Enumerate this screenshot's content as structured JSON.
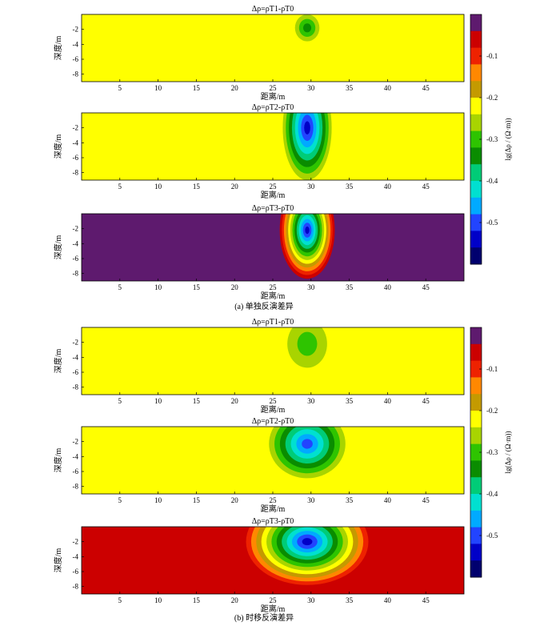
{
  "figure": {
    "panel_a_caption": "(a) 单独反演差异",
    "panel_b_caption": "(b) 时移反演差异"
  },
  "colors": {
    "colorbar_top_to_bottom": [
      "#5e1a6e",
      "#cc0000",
      "#ee2200",
      "#ff8800",
      "#c49a00",
      "#ffff00",
      "#a8d400",
      "#2ec400",
      "#0a8c00",
      "#00cc77",
      "#00e0d0",
      "#00aaff",
      "#2244ff",
      "#0000c8",
      "#00006e"
    ]
  },
  "chart_data": [
    {
      "type": "heatmap",
      "group": "a",
      "title": "Δρ=ρT1-ρT0",
      "xlabel": "距离/m",
      "ylabel": "深度/m",
      "xticks": [
        "5",
        "10",
        "15",
        "20",
        "25",
        "30",
        "35",
        "40",
        "45"
      ],
      "yticks": [
        "-2",
        "-4",
        "-6",
        "-8"
      ],
      "xlim": [
        0,
        50
      ],
      "ylim": [
        -9,
        0
      ],
      "zlim": [
        -0.6,
        0
      ],
      "background_level": 0.37,
      "features": [
        {
          "x": 29.5,
          "y": -1.8,
          "rx": 1.6,
          "ry": 1.8,
          "min_level": 0.58
        }
      ]
    },
    {
      "type": "heatmap",
      "group": "a",
      "title": "Δρ=ρT2-ρT0",
      "xlabel": "距离/m",
      "ylabel": "深度/m",
      "xticks": [
        "5",
        "10",
        "15",
        "20",
        "25",
        "30",
        "35",
        "40",
        "45"
      ],
      "yticks": [
        "-2",
        "-4",
        "-6",
        "-8"
      ],
      "xlim": [
        0,
        50
      ],
      "ylim": [
        -9,
        0
      ],
      "zlim": [
        -0.6,
        0
      ],
      "background_level": 0.37,
      "features": [
        {
          "x": 29.5,
          "y": -2.0,
          "rx": 3.2,
          "ry": 7.0,
          "min_level": 0.93
        }
      ]
    },
    {
      "type": "heatmap",
      "group": "a",
      "title": "Δρ=ρT3-ρT0",
      "xlabel": "距离/m",
      "ylabel": "深度/m",
      "xticks": [
        "5",
        "10",
        "15",
        "20",
        "25",
        "30",
        "35",
        "40",
        "45"
      ],
      "yticks": [
        "-2",
        "-4",
        "-6",
        "-8"
      ],
      "xlim": [
        0,
        50
      ],
      "ylim": [
        -9,
        0
      ],
      "zlim": [
        -0.6,
        0
      ],
      "background_level": 0.03,
      "features": [
        {
          "x": 29.5,
          "y": -2.2,
          "rx": 3.6,
          "ry": 6.5,
          "min_level": 0.95
        }
      ]
    },
    {
      "type": "heatmap",
      "group": "b",
      "title": "Δρ=ρT1-ρT0",
      "xlabel": "距离/m",
      "ylabel": "深度/m",
      "xticks": [
        "5",
        "10",
        "15",
        "20",
        "25",
        "30",
        "35",
        "40",
        "45"
      ],
      "yticks": [
        "-2",
        "-4",
        "-6",
        "-8"
      ],
      "xlim": [
        0,
        50
      ],
      "ylim": [
        -9,
        0
      ],
      "zlim": [
        -0.6,
        0
      ],
      "background_level": 0.34,
      "features": [
        {
          "x": 29.5,
          "y": -2.2,
          "rx": 2.6,
          "ry": 3.2,
          "min_level": 0.52
        }
      ]
    },
    {
      "type": "heatmap",
      "group": "b",
      "title": "Δρ=ρT2-ρT0",
      "xlabel": "距离/m",
      "ylabel": "深度/m",
      "xticks": [
        "5",
        "10",
        "15",
        "20",
        "25",
        "30",
        "35",
        "40",
        "45"
      ],
      "yticks": [
        "-2",
        "-4",
        "-6",
        "-8"
      ],
      "xlim": [
        0,
        50
      ],
      "ylim": [
        -9,
        0
      ],
      "zlim": [
        -0.6,
        0
      ],
      "background_level": 0.33,
      "features": [
        {
          "x": 29.5,
          "y": -2.3,
          "rx": 5.0,
          "ry": 4.6,
          "min_level": 0.85
        }
      ]
    },
    {
      "type": "heatmap",
      "group": "b",
      "title": "Δρ=ρT3-ρT0",
      "xlabel": "距离/m",
      "ylabel": "深度/m",
      "xticks": [
        "5",
        "10",
        "15",
        "20",
        "25",
        "30",
        "35",
        "40",
        "45"
      ],
      "yticks": [
        "-2",
        "-4",
        "-6",
        "-8"
      ],
      "xlim": [
        0,
        50
      ],
      "ylim": [
        -9,
        0
      ],
      "zlim": [
        -0.6,
        0
      ],
      "background_level": 0.05,
      "features": [
        {
          "x": 29.5,
          "y": -2.0,
          "rx": 8.0,
          "ry": 5.8,
          "min_level": 0.93
        }
      ]
    }
  ],
  "colorbars": [
    {
      "group": "a",
      "label": "lg(Δρ / (Ω·m))",
      "ticks": [
        "-0.1",
        "-0.2",
        "-0.3",
        "-0.4",
        "-0.5"
      ]
    },
    {
      "group": "b",
      "label": "lg(Δρ / (Ω·m))",
      "ticks": [
        "-0.1",
        "-0.2",
        "-0.3",
        "-0.4",
        "-0.5"
      ]
    }
  ]
}
